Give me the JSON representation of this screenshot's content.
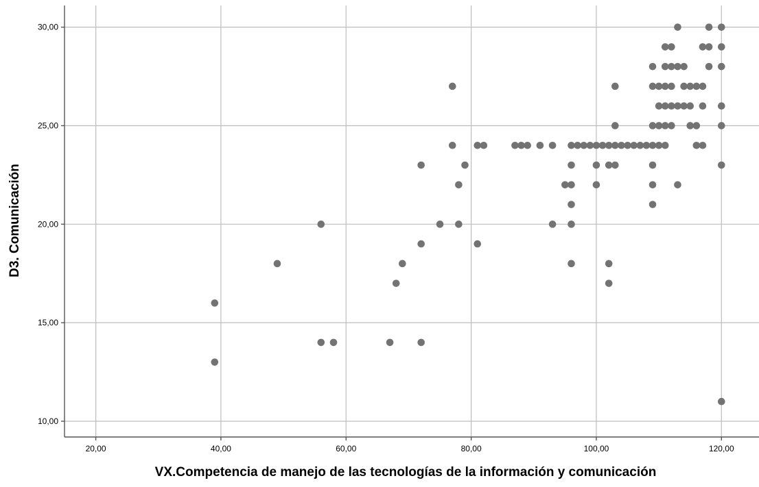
{
  "chart_data": {
    "type": "scatter",
    "title": "",
    "xlabel": "VX.Competencia de manejo de las tecnologías de la información y comunicación",
    "ylabel": "D3. Comunicación",
    "xlim": [
      15,
      126
    ],
    "ylim": [
      9.2,
      31.1
    ],
    "xticks": [
      20,
      40,
      60,
      80,
      100,
      120
    ],
    "yticks": [
      10,
      15,
      20,
      25,
      30
    ],
    "xtick_labels": [
      "20,00",
      "40,00",
      "60,00",
      "80,00",
      "100,00",
      "120,00"
    ],
    "ytick_labels": [
      "10,00",
      "15,00",
      "20,00",
      "25,00",
      "30,00"
    ],
    "grid": true,
    "point_color": "#737373",
    "points": [
      [
        39,
        16
      ],
      [
        39,
        13
      ],
      [
        49,
        18
      ],
      [
        56,
        20
      ],
      [
        56,
        14
      ],
      [
        58,
        14
      ],
      [
        67,
        14
      ],
      [
        68,
        17
      ],
      [
        69,
        18
      ],
      [
        72,
        23
      ],
      [
        72,
        19
      ],
      [
        72,
        14
      ],
      [
        75,
        20
      ],
      [
        77,
        27
      ],
      [
        77,
        24
      ],
      [
        78,
        22
      ],
      [
        78,
        20
      ],
      [
        79,
        23
      ],
      [
        81,
        24
      ],
      [
        81,
        19
      ],
      [
        82,
        24
      ],
      [
        87,
        24
      ],
      [
        88,
        24
      ],
      [
        89,
        24
      ],
      [
        91,
        24
      ],
      [
        93,
        24
      ],
      [
        93,
        20
      ],
      [
        95,
        22
      ],
      [
        96,
        24
      ],
      [
        96,
        23
      ],
      [
        96,
        22
      ],
      [
        96,
        21
      ],
      [
        96,
        20
      ],
      [
        96,
        18
      ],
      [
        97,
        24
      ],
      [
        98,
        24
      ],
      [
        99,
        24
      ],
      [
        100,
        24
      ],
      [
        100,
        23
      ],
      [
        100,
        22
      ],
      [
        101,
        24
      ],
      [
        102,
        24
      ],
      [
        102,
        23
      ],
      [
        102,
        18
      ],
      [
        102,
        17
      ],
      [
        103,
        27
      ],
      [
        103,
        25
      ],
      [
        103,
        24
      ],
      [
        103,
        23
      ],
      [
        104,
        24
      ],
      [
        105,
        24
      ],
      [
        106,
        24
      ],
      [
        107,
        24
      ],
      [
        108,
        24
      ],
      [
        109,
        28
      ],
      [
        109,
        27
      ],
      [
        109,
        25
      ],
      [
        109,
        24
      ],
      [
        109,
        23
      ],
      [
        109,
        22
      ],
      [
        109,
        21
      ],
      [
        110,
        27
      ],
      [
        110,
        26
      ],
      [
        110,
        25
      ],
      [
        110,
        24
      ],
      [
        111,
        29
      ],
      [
        111,
        28
      ],
      [
        111,
        27
      ],
      [
        111,
        26
      ],
      [
        111,
        25
      ],
      [
        111,
        24
      ],
      [
        112,
        29
      ],
      [
        112,
        28
      ],
      [
        112,
        27
      ],
      [
        112,
        26
      ],
      [
        112,
        25
      ],
      [
        113,
        30
      ],
      [
        113,
        28
      ],
      [
        113,
        26
      ],
      [
        113,
        22
      ],
      [
        114,
        28
      ],
      [
        114,
        27
      ],
      [
        114,
        26
      ],
      [
        115,
        27
      ],
      [
        115,
        26
      ],
      [
        115,
        25
      ],
      [
        116,
        27
      ],
      [
        116,
        25
      ],
      [
        116,
        24
      ],
      [
        117,
        29
      ],
      [
        117,
        27
      ],
      [
        117,
        26
      ],
      [
        117,
        24
      ],
      [
        118,
        30
      ],
      [
        118,
        29
      ],
      [
        118,
        28
      ],
      [
        120,
        30
      ],
      [
        120,
        29
      ],
      [
        120,
        28
      ],
      [
        120,
        26
      ],
      [
        120,
        25
      ],
      [
        120,
        23
      ],
      [
        120,
        11
      ]
    ]
  }
}
